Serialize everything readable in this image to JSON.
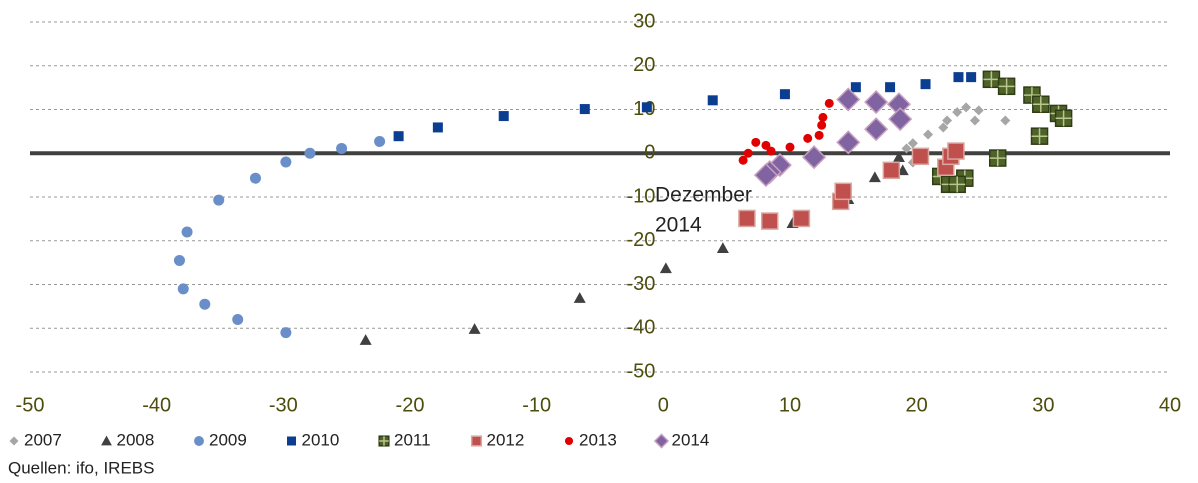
{
  "chart_data": {
    "type": "scatter",
    "annotation_lines": [
      "Dezember",
      "2014"
    ],
    "source": "Quellen: ifo, IREBS",
    "xlim": [
      -50,
      40
    ],
    "xticks": [
      -50,
      -40,
      -30,
      -20,
      -10,
      0,
      10,
      20,
      30,
      40
    ],
    "ylim": [
      -50,
      30
    ],
    "yticks": [
      -50,
      -40,
      -30,
      -20,
      -10,
      0,
      10,
      20,
      30
    ],
    "grid": true,
    "legend": "bottom",
    "series": [
      {
        "name": "2007",
        "color": "#a6a6a6",
        "marker": "diamond",
        "x": [
          19.7,
          19.2,
          19.7,
          20.9,
          22.1,
          22.4,
          23.2,
          23.9,
          24.9,
          24.6,
          27
        ],
        "y": [
          -2.1,
          1.1,
          2.3,
          4.3,
          5.9,
          7.5,
          9.4,
          10.5,
          9.8,
          7.5,
          7.5
        ]
      },
      {
        "name": "2008",
        "color": "#404040",
        "marker": "triangle",
        "x": [
          18.6,
          18.9,
          16.7,
          14.6,
          10.2,
          4.7,
          0.2,
          -6.6,
          -14.9,
          -23.5
        ],
        "y": [
          -0.9,
          -3.9,
          -5.5,
          -10.5,
          -16,
          -21.7,
          -26.3,
          -33.1,
          -40.2,
          -42.7
        ]
      },
      {
        "name": "2009",
        "color": "#6a8fc8",
        "marker": "circle",
        "x": [
          -29.8,
          -33.6,
          -36.2,
          -37.9,
          -38.2,
          -37.6,
          -35.1,
          -32.2,
          -29.8,
          -27.9,
          -25.4,
          -22.4
        ],
        "y": [
          -41,
          -38,
          -34.5,
          -31,
          -24.5,
          -18,
          -10.7,
          -5.7,
          -2,
          0,
          1.1,
          2.7
        ]
      },
      {
        "name": "2010",
        "color": "#0b3d91",
        "marker": "square",
        "x": [
          -20.9,
          -17.8,
          -12.6,
          -6.2,
          -1.3,
          3.9,
          9.6,
          15.2,
          17.9,
          20.7,
          23.3,
          24.3
        ],
        "y": [
          3.9,
          5.9,
          8.5,
          10.1,
          10.5,
          12.1,
          13.5,
          15.1,
          15.1,
          15.8,
          17.4,
          17.4
        ]
      },
      {
        "name": "2011",
        "color": "#4f6228",
        "marker": "cross-square",
        "x": [
          25.9,
          27.1,
          29.1,
          29.8,
          31.2,
          31.6,
          29.7,
          26.4,
          23.8,
          21.9,
          22.6,
          23.2
        ],
        "y": [
          16.9,
          15.3,
          13.3,
          11.2,
          9.1,
          8,
          3.9,
          -1.1,
          -5.7,
          -5.3,
          -7.1,
          -7.1
        ]
      },
      {
        "name": "2012",
        "color": "#c0504d",
        "marker": "big-square",
        "x": [
          6.6,
          8.4,
          10.9,
          14,
          14.2,
          18,
          20.3,
          22.3,
          22.7,
          23.1
        ],
        "y": [
          -14.9,
          -15.5,
          -14.9,
          -11,
          -8.7,
          -3.9,
          -0.7,
          -3.2,
          -0.7,
          0.5
        ]
      },
      {
        "name": "2013",
        "color": "#e00000",
        "marker": "dot",
        "x": [
          6.3,
          6.7,
          7.3,
          8.1,
          8.5,
          10,
          11.4,
          12.3,
          12.5,
          12.6,
          13.1
        ],
        "y": [
          -1.6,
          0,
          2.5,
          1.8,
          0.5,
          1.4,
          3.4,
          4.1,
          6.4,
          8.2,
          11.4
        ]
      },
      {
        "name": "2014",
        "color": "#8064a2",
        "marker": "big-diamond",
        "x": [
          14.6,
          16.8,
          18.6,
          18.7,
          16.8,
          14.6,
          11.9,
          9.2,
          8.4,
          8.1
        ],
        "y": [
          12.3,
          11.7,
          11.2,
          7.8,
          5.5,
          2.5,
          -0.9,
          -2.7,
          -4.3,
          -5.0
        ]
      }
    ]
  }
}
